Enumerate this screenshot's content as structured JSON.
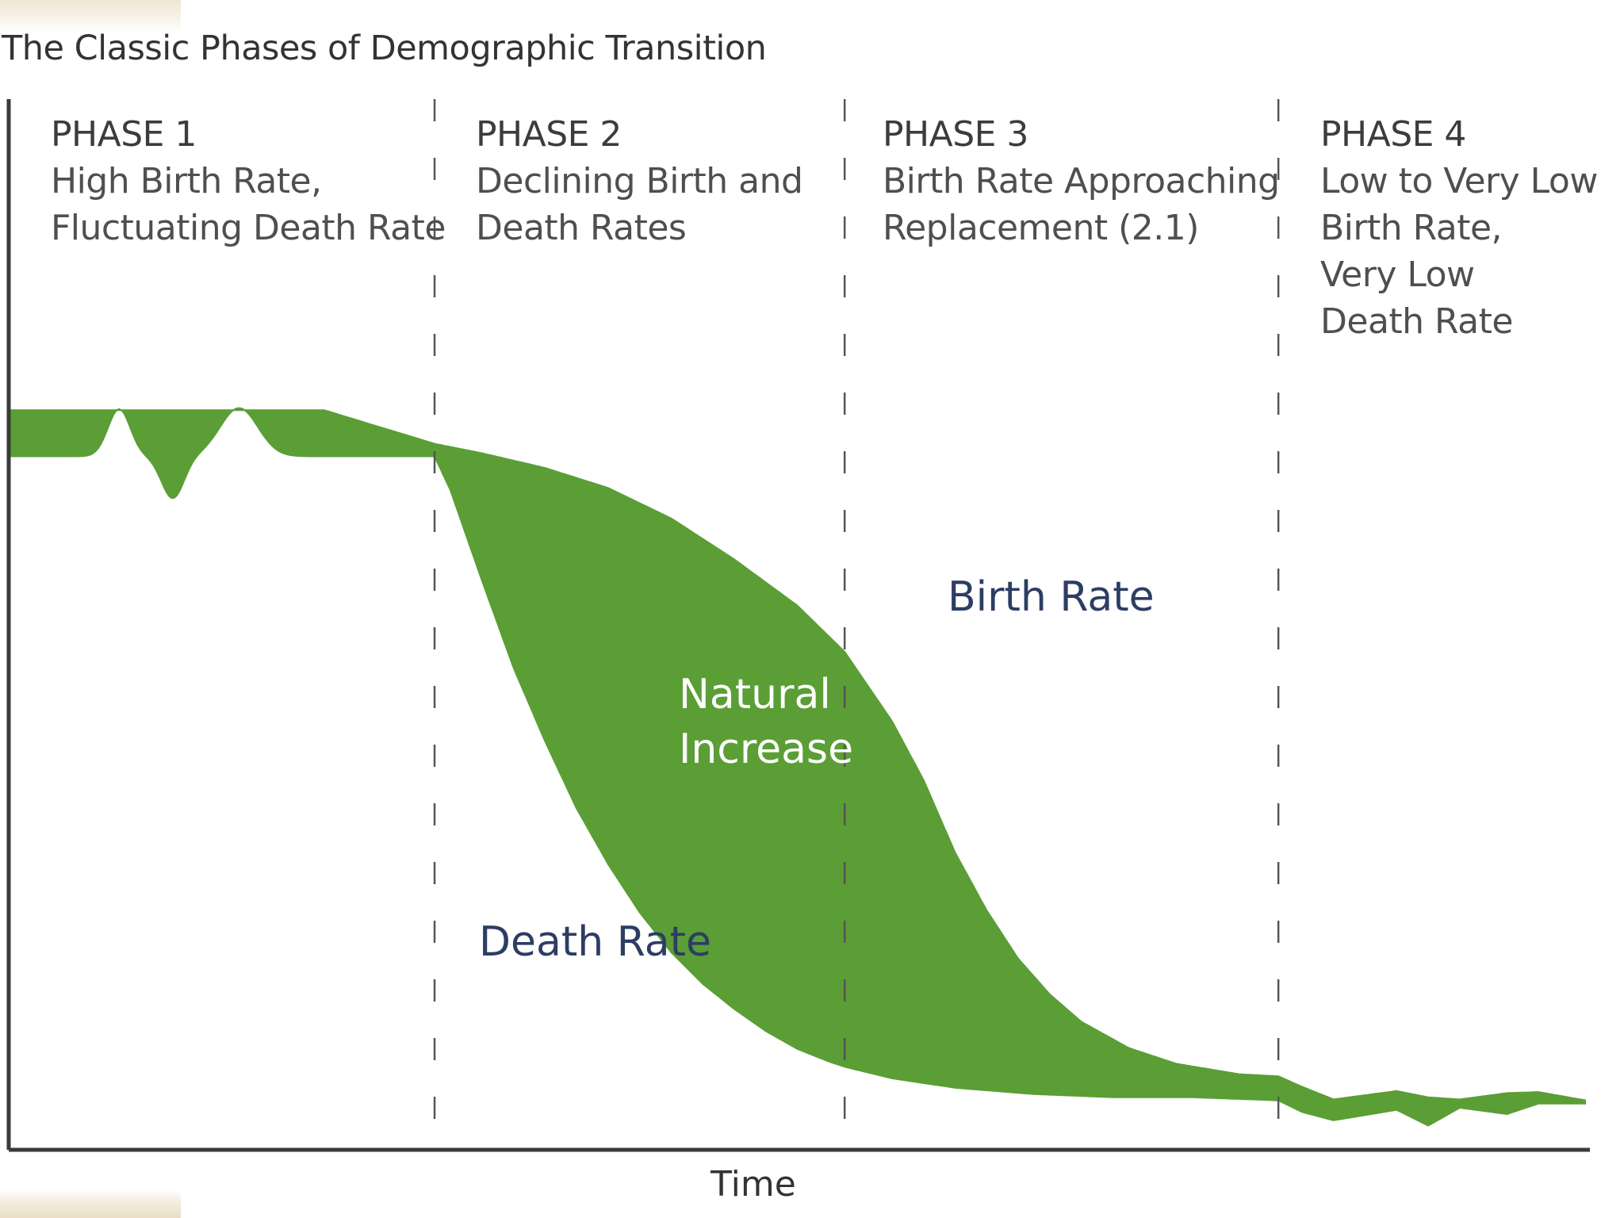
{
  "colors": {
    "fill": "#5a9e35",
    "axis": "#3a3a3a",
    "divider": "#555555",
    "series_label": "#2d3d63",
    "inner_label": "#ffffff"
  },
  "chart_data": {
    "type": "area",
    "title": "The Classic Phases of Demographic Transition",
    "xlabel": "Time",
    "ylabel": "",
    "xlim": [
      0,
      100
    ],
    "ylim": [
      0,
      100
    ],
    "grid": false,
    "phases": [
      {
        "name": "PHASE 1",
        "desc": "High Birth Rate,\nFluctuating Death Rate",
        "start": 0,
        "end": 27
      },
      {
        "name": "PHASE 2",
        "desc": "Declining Birth and\nDeath Rates",
        "start": 27,
        "end": 53
      },
      {
        "name": "PHASE 3",
        "desc": "Birth Rate Approaching\nReplacement (2.1)",
        "start": 53,
        "end": 80.5
      },
      {
        "name": "PHASE 4",
        "desc": "Low to Very Low\nBirth Rate,\nVery Low\nDeath Rate",
        "start": 80.5,
        "end": 100
      }
    ],
    "series": [
      {
        "name": "Birth Rate",
        "x": [
          0,
          4,
          8,
          12,
          17,
          20,
          27,
          30,
          34,
          38,
          42,
          46,
          50,
          53,
          56,
          58,
          60,
          62,
          64,
          66,
          68,
          71,
          74,
          78,
          80.5,
          82,
          84,
          88,
          90,
          92,
          95,
          97,
          100
        ],
        "values": [
          70.4,
          70.4,
          70.4,
          70.4,
          70.4,
          70.4,
          67.2,
          66.3,
          64.9,
          63.0,
          60.1,
          56.2,
          51.8,
          47.4,
          40.8,
          35.2,
          28.3,
          22.8,
          18.2,
          14.8,
          12.2,
          9.7,
          8.2,
          7.2,
          7.0,
          6.0,
          4.8,
          5.6,
          5.0,
          4.8,
          5.4,
          5.5,
          4.7
        ]
      },
      {
        "name": "Death Rate",
        "x": [
          0,
          4,
          8,
          12,
          17,
          20,
          27,
          28,
          30,
          32,
          34,
          36,
          38,
          40,
          42,
          44,
          46,
          48,
          50,
          52,
          53,
          56,
          60,
          65,
          70,
          75,
          80.5,
          82,
          84,
          88,
          90,
          92,
          95,
          97,
          100
        ],
        "values": [
          66.0,
          66.0,
          66.0,
          66.0,
          66.0,
          66.0,
          66.0,
          62.8,
          54.2,
          45.9,
          38.9,
          32.5,
          27.2,
          22.6,
          18.8,
          15.8,
          13.4,
          11.3,
          9.6,
          8.4,
          7.9,
          6.8,
          5.9,
          5.3,
          5.0,
          5.0,
          4.7,
          3.6,
          2.8,
          3.8,
          2.3,
          4.0,
          3.4,
          4.4,
          4.4
        ]
      }
    ],
    "region_labels": {
      "natural_increase": [
        "Natural",
        "Increase"
      ],
      "birth_rate": "Birth Rate",
      "death_rate": "Death Rate"
    }
  }
}
